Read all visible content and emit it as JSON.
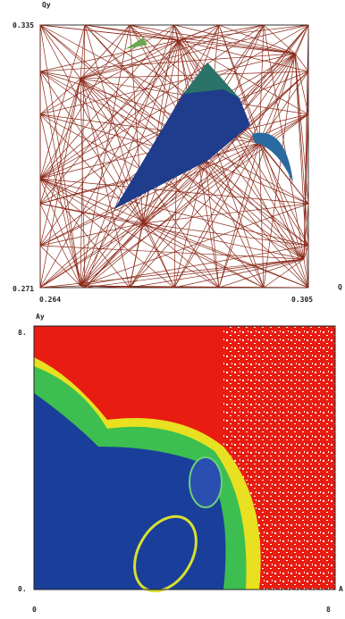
{
  "top_panel": {
    "y_label": "Qy",
    "y_top": "0.335",
    "y_bottom": "0.271",
    "x_left": "0.264",
    "x_right": "0.305",
    "x_label": "Q"
  },
  "bottom_panel": {
    "y_label": "Ay",
    "y_top": "8.",
    "y_bottom": "0.",
    "x_left": "0",
    "x_right": "8",
    "x_label": "A"
  }
}
